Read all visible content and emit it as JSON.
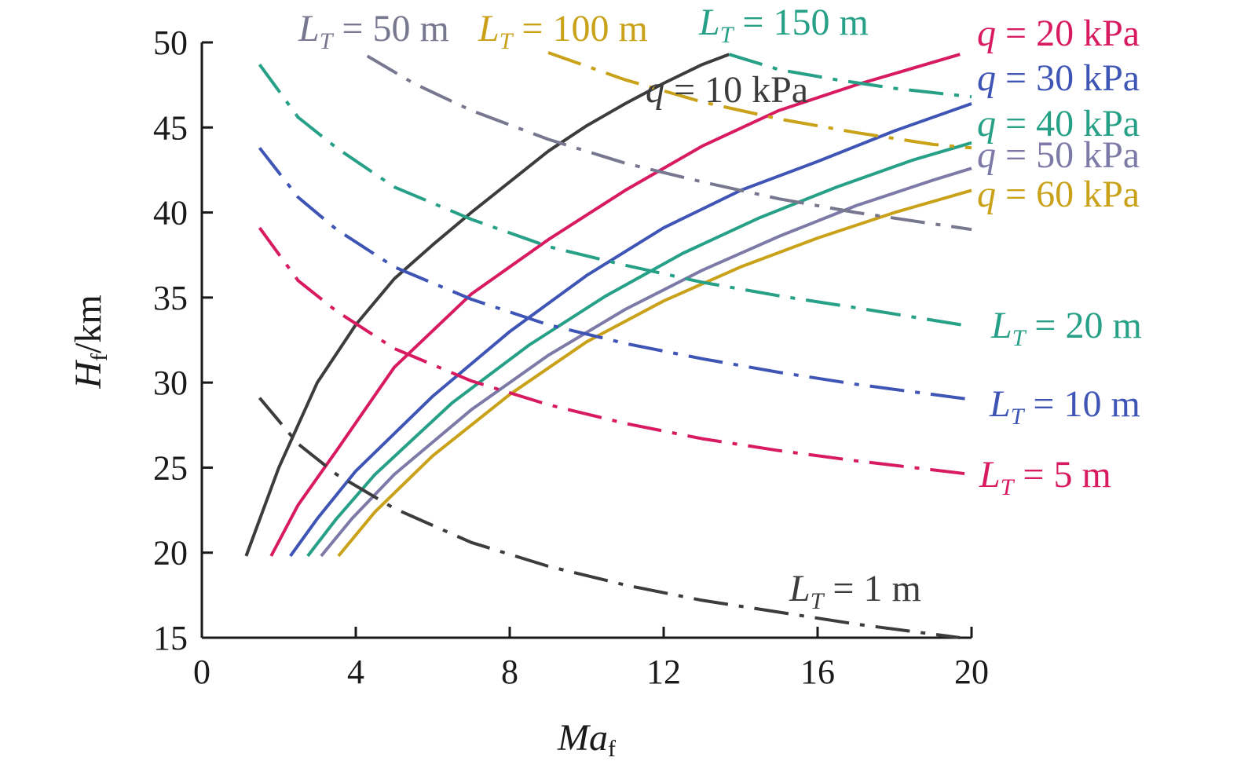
{
  "chart_data": {
    "type": "line",
    "xlabel": "Ma",
    "xlabel_subscript": "f",
    "ylabel": "H",
    "ylabel_subscript": "f",
    "ylabel_unit": "/km",
    "xlim": [
      0,
      20
    ],
    "ylim": [
      15,
      50
    ],
    "xticks": [
      0,
      4,
      8,
      12,
      16,
      20
    ],
    "yticks": [
      15,
      20,
      25,
      30,
      35,
      40,
      45,
      50
    ],
    "grid": false,
    "series": [
      {
        "name_var": "q",
        "name_rest": " = 10 kPa",
        "group": "q",
        "color": "#3c3c3c",
        "dash": "solid",
        "x": [
          1.15,
          2.0,
          3.0,
          4.0,
          5.0,
          6.0,
          7.0,
          8.0,
          9.0,
          10.0,
          11.0,
          12.0,
          13.0,
          13.7
        ],
        "y": [
          19.8,
          25.0,
          30.0,
          33.4,
          36.1,
          38.1,
          40.0,
          41.8,
          43.6,
          45.1,
          46.4,
          47.6,
          48.7,
          49.3
        ]
      },
      {
        "name_var": "q",
        "name_rest": " = 20 kPa",
        "group": "q",
        "color": "#d81b60",
        "dash": "solid",
        "x": [
          1.8,
          2.5,
          3.5,
          5.0,
          7.0,
          9.0,
          11.0,
          13.0,
          15.0,
          17.0,
          19.7
        ],
        "y": [
          19.8,
          22.8,
          26.0,
          30.9,
          35.2,
          38.4,
          41.3,
          43.9,
          46.0,
          47.5,
          49.3
        ]
      },
      {
        "name_var": "q",
        "name_rest": " = 30 kPa",
        "group": "q",
        "color": "#3e55b5",
        "dash": "solid",
        "x": [
          2.3,
          3.0,
          4.0,
          6.0,
          8.0,
          10.0,
          12.0,
          14.0,
          16.0,
          18.0,
          20.0
        ],
        "y": [
          19.8,
          22.0,
          24.8,
          29.2,
          33.0,
          36.3,
          39.1,
          41.3,
          43.0,
          44.8,
          46.4
        ]
      },
      {
        "name_var": "q",
        "name_rest": " = 40 kPa",
        "group": "q",
        "color": "#26a086",
        "dash": "solid",
        "x": [
          2.75,
          3.5,
          4.5,
          6.5,
          8.5,
          10.5,
          12.5,
          14.5,
          16.5,
          18.5,
          20.0
        ],
        "y": [
          19.8,
          22.0,
          24.6,
          28.8,
          32.2,
          35.1,
          37.6,
          39.7,
          41.5,
          43.1,
          44.1
        ]
      },
      {
        "name_var": "q",
        "name_rest": " = 50 kPa",
        "group": "q",
        "color": "#7d7aa8",
        "dash": "solid",
        "x": [
          3.1,
          3.9,
          5.0,
          7.0,
          9.0,
          11.0,
          13.0,
          15.0,
          17.0,
          19.0,
          20.0
        ],
        "y": [
          19.8,
          22.0,
          24.6,
          28.4,
          31.6,
          34.3,
          36.6,
          38.6,
          40.4,
          41.9,
          42.6
        ]
      },
      {
        "name_var": "q",
        "name_rest": " = 60 kPa",
        "group": "q",
        "color": "#c9a21a",
        "dash": "solid",
        "x": [
          3.55,
          4.5,
          6.0,
          8.0,
          10.0,
          12.0,
          14.0,
          16.0,
          18.0,
          20.0
        ],
        "y": [
          19.8,
          22.4,
          25.7,
          29.3,
          32.4,
          34.8,
          36.8,
          38.5,
          40.0,
          41.3
        ]
      },
      {
        "name_var": "L",
        "name_sub": "T",
        "name_rest": " = 1 m",
        "group": "L",
        "color": "#3c3c3c",
        "dash": "dashdot",
        "x": [
          1.5,
          2.5,
          3.5,
          5.0,
          7.0,
          9.0,
          11.0,
          13.0,
          15.0,
          17.0,
          19.7
        ],
        "y": [
          29.1,
          26.4,
          24.6,
          22.6,
          20.6,
          19.2,
          18.1,
          17.2,
          16.5,
          15.8,
          15.0
        ]
      },
      {
        "name_var": "L",
        "name_sub": "T",
        "name_rest": " = 5 m",
        "group": "L",
        "color": "#d81b60",
        "dash": "dashdot",
        "x": [
          1.5,
          2.5,
          3.5,
          5.0,
          7.0,
          9.0,
          11.0,
          13.0,
          15.0,
          17.0,
          20.0
        ],
        "y": [
          39.1,
          36.0,
          34.2,
          32.0,
          30.1,
          28.7,
          27.6,
          26.7,
          26.0,
          25.4,
          24.6
        ]
      },
      {
        "name_var": "L",
        "name_sub": "T",
        "name_rest": " = 10 m",
        "group": "L",
        "color": "#3e55b5",
        "dash": "dashdot",
        "x": [
          1.5,
          2.5,
          3.5,
          5.0,
          7.0,
          9.0,
          11.0,
          13.0,
          15.0,
          17.0,
          20.0
        ],
        "y": [
          43.8,
          40.9,
          39.0,
          36.8,
          34.9,
          33.4,
          32.3,
          31.4,
          30.6,
          29.9,
          29.0
        ]
      },
      {
        "name_var": "L",
        "name_sub": "T",
        "name_rest": " = 20 m",
        "group": "L",
        "color": "#26a086",
        "dash": "dashdot",
        "x": [
          1.5,
          2.5,
          3.5,
          5.0,
          7.0,
          9.0,
          11.0,
          13.0,
          15.0,
          17.0,
          20.0
        ],
        "y": [
          48.7,
          45.6,
          43.8,
          41.5,
          39.6,
          38.0,
          36.9,
          35.9,
          35.1,
          34.4,
          33.3
        ]
      },
      {
        "name_var": "L",
        "name_sub": "T",
        "name_rest": " = 50 m",
        "group": "L",
        "color": "#77778f",
        "dash": "dashdot",
        "x": [
          4.3,
          5.5,
          7.0,
          9.0,
          11.0,
          13.0,
          15.0,
          17.0,
          20.0
        ],
        "y": [
          49.2,
          47.6,
          46.0,
          44.3,
          42.9,
          41.8,
          40.8,
          40.0,
          39.0
        ]
      },
      {
        "name_var": "L",
        "name_sub": "T",
        "name_rest": " = 100 m",
        "group": "L",
        "color": "#c9a21a",
        "dash": "dashdot",
        "x": [
          9.0,
          11.0,
          13.0,
          15.0,
          17.0,
          19.0,
          20.0
        ],
        "y": [
          49.4,
          47.8,
          46.5,
          45.5,
          44.7,
          44.0,
          43.8
        ]
      },
      {
        "name_var": "L",
        "name_sub": "T",
        "name_rest": " = 150 m",
        "group": "L",
        "color": "#26a086",
        "dash": "dashdot",
        "x": [
          13.7,
          15.0,
          16.5,
          18.0,
          20.0
        ],
        "y": [
          49.3,
          48.4,
          47.8,
          47.3,
          46.8
        ]
      }
    ]
  }
}
